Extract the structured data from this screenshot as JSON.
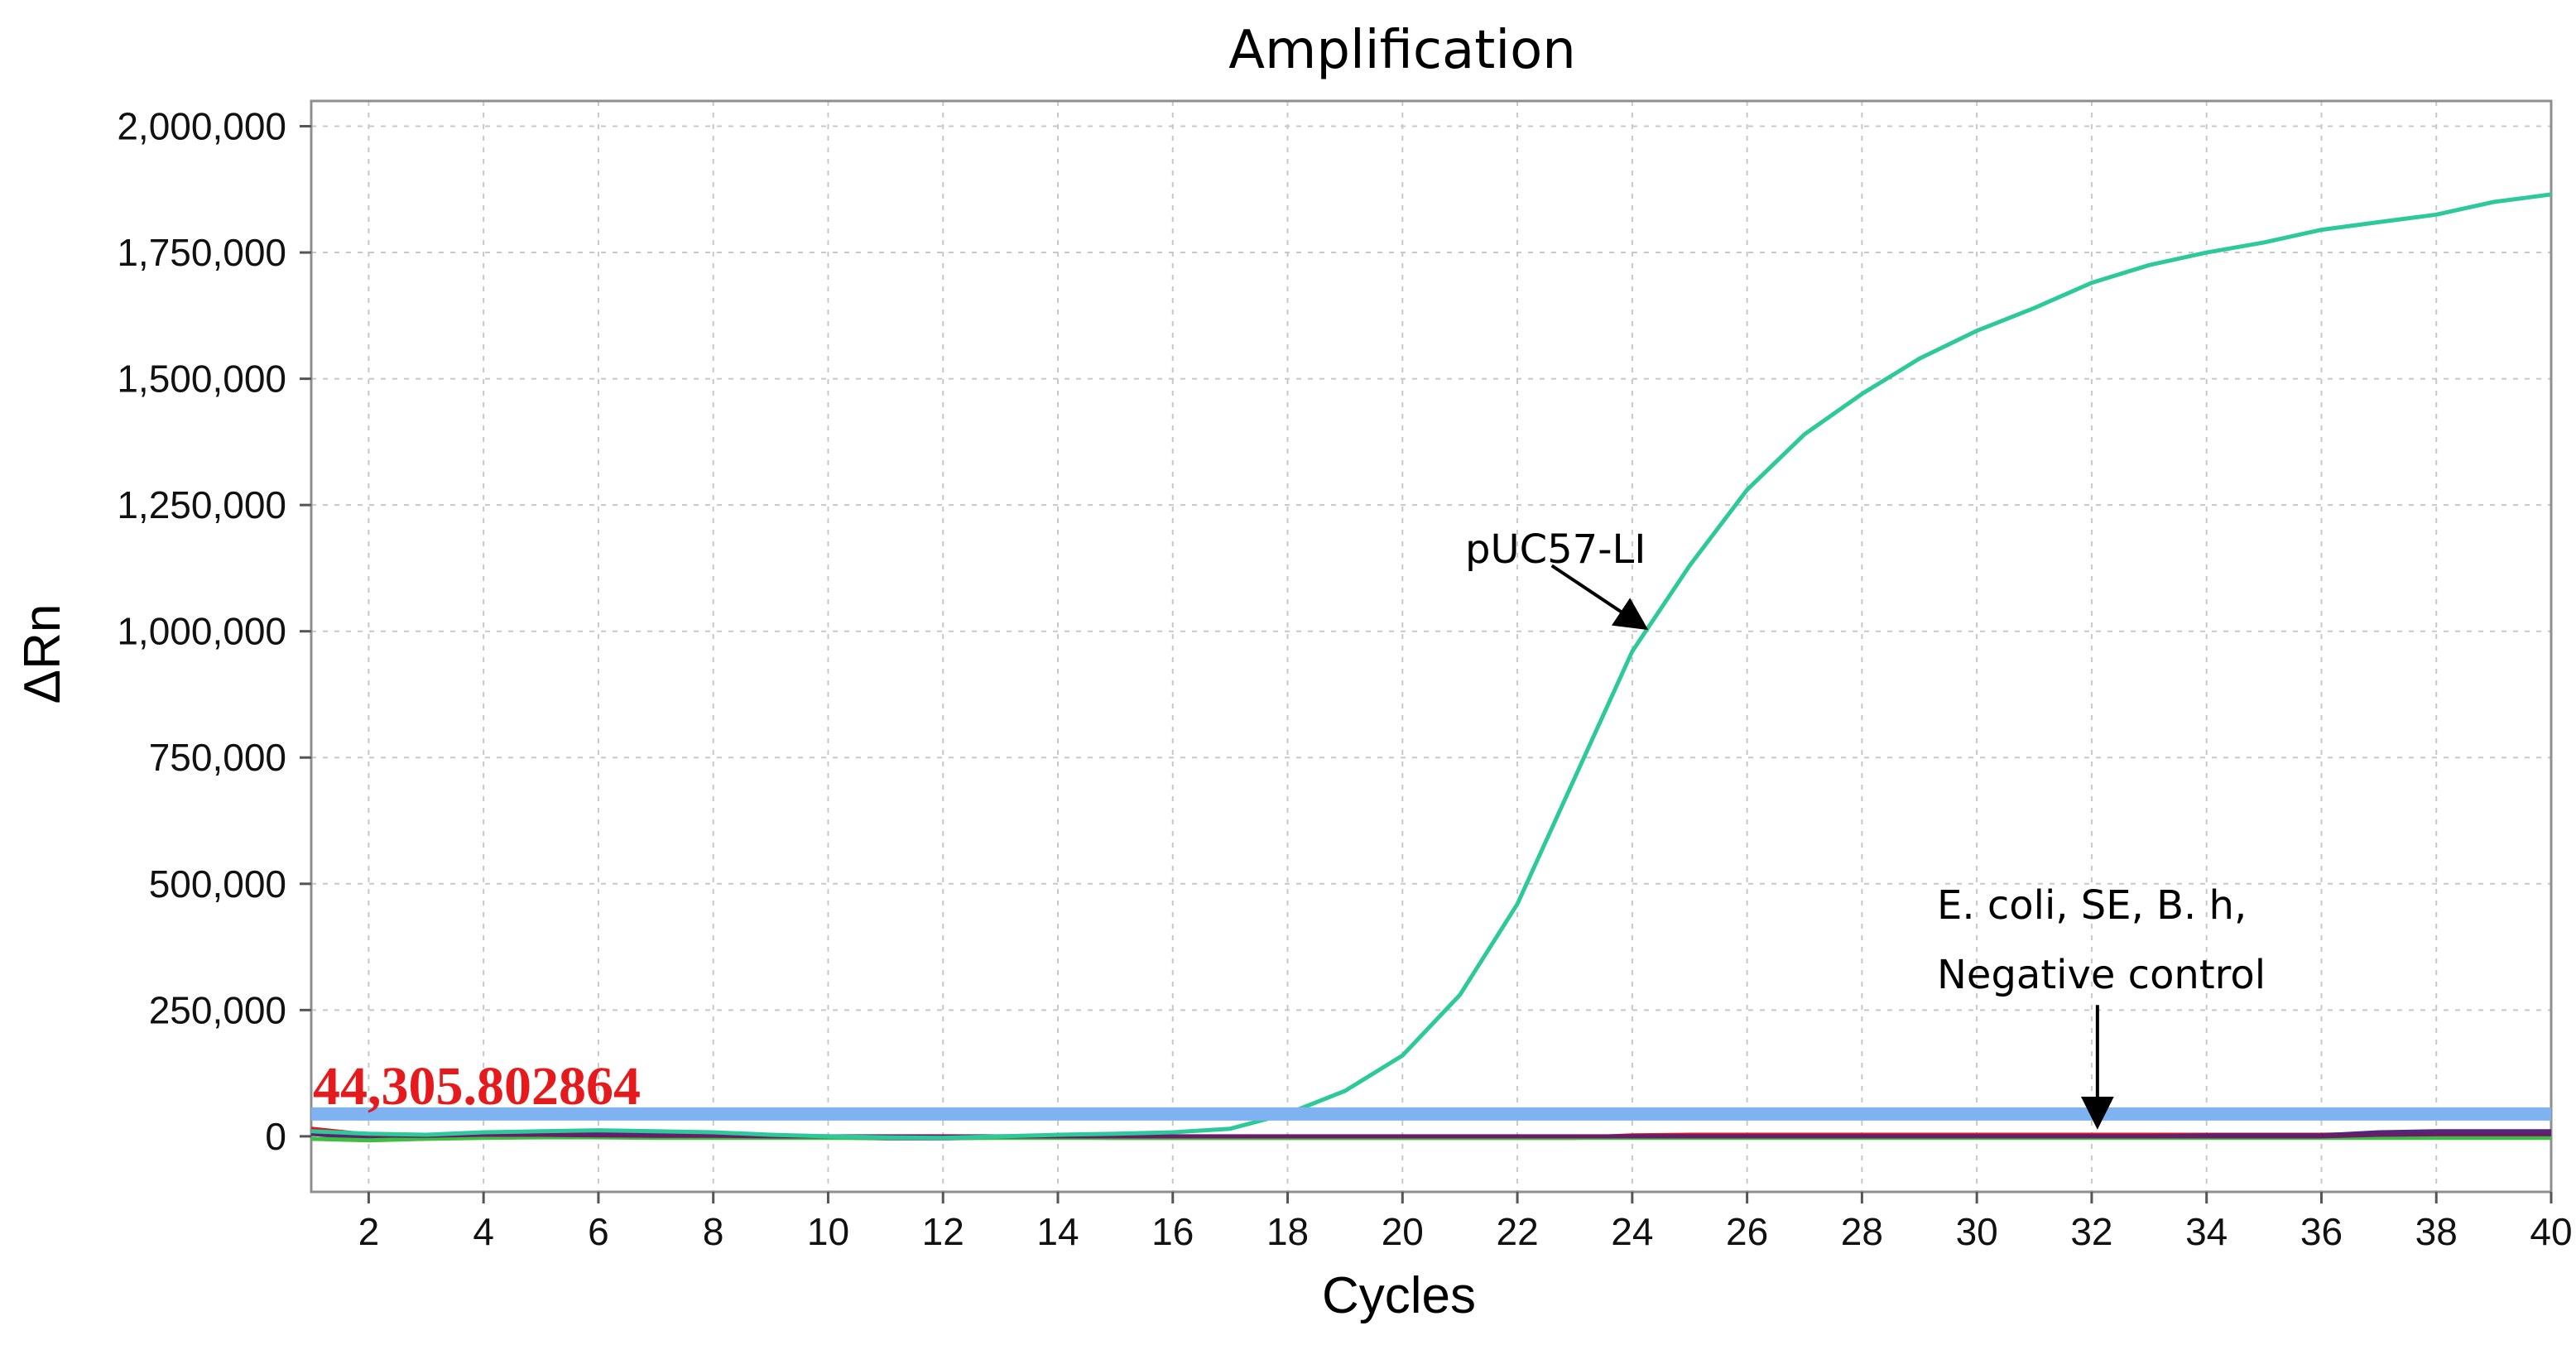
{
  "chart_data": {
    "type": "line",
    "title": "Amplification",
    "xlabel": "Cycles",
    "ylabel": "ΔRn",
    "xlim": [
      1,
      40
    ],
    "ylim": [
      -110000,
      2050000
    ],
    "grid": true,
    "x_ticks": [
      2,
      4,
      6,
      8,
      10,
      12,
      14,
      16,
      18,
      20,
      22,
      24,
      26,
      28,
      30,
      32,
      34,
      36,
      38,
      40
    ],
    "y_ticks": [
      0,
      250000,
      500000,
      750000,
      1000000,
      1250000,
      1500000,
      1750000,
      2000000
    ],
    "y_tick_labels": [
      "0",
      "250,000",
      "500,000",
      "750,000",
      "1,000,000",
      "1,250,000",
      "1,500,000",
      "1,750,000",
      "2,000,000"
    ],
    "threshold": {
      "value": 44305.802864,
      "label": "44,305.802864",
      "color": "#7fb2f0"
    },
    "series": [
      {
        "name": "pUC57-LI",
        "color": "#2ec99a",
        "x": [
          1,
          2,
          3,
          4,
          5,
          6,
          7,
          8,
          9,
          10,
          11,
          12,
          13,
          14,
          15,
          16,
          17,
          18,
          19,
          20,
          21,
          22,
          23,
          24,
          25,
          26,
          27,
          28,
          29,
          30,
          31,
          32,
          33,
          34,
          35,
          36,
          37,
          38,
          39,
          40
        ],
        "values": [
          10000,
          5000,
          3000,
          8000,
          10000,
          12000,
          10000,
          8000,
          3000,
          0,
          -2000,
          -3000,
          0,
          3000,
          5000,
          8000,
          15000,
          45000,
          90000,
          160000,
          280000,
          460000,
          710000,
          960000,
          1130000,
          1280000,
          1390000,
          1470000,
          1540000,
          1595000,
          1640000,
          1690000,
          1725000,
          1750000,
          1770000,
          1795000,
          1810000,
          1825000,
          1850000,
          1865000
        ]
      },
      {
        "name": "E. coli",
        "color": "#d81b22",
        "x": [
          1,
          2,
          3,
          4,
          5,
          6,
          7,
          8,
          9,
          10,
          11,
          12,
          13,
          14,
          15,
          16,
          17,
          18,
          19,
          20,
          21,
          22,
          23,
          24,
          25,
          26,
          27,
          28,
          29,
          30,
          31,
          32,
          33,
          34,
          35,
          36,
          37,
          38,
          39,
          40
        ],
        "values": [
          15000,
          3000,
          0,
          2000,
          3000,
          2000,
          1000,
          0,
          -2000,
          -2000,
          -2000,
          -3000,
          -2000,
          -2000,
          -3000,
          -3000,
          -3000,
          -3000,
          -3000,
          -3000,
          -3000,
          -3000,
          -3000,
          2000,
          3000,
          3000,
          3000,
          3000,
          3000,
          3000,
          3000,
          3000,
          3000,
          3000,
          3000,
          3000,
          5000,
          6000,
          6000,
          6000
        ]
      },
      {
        "name": "SE",
        "color": "#4b2a7b",
        "x": [
          1,
          2,
          3,
          4,
          5,
          6,
          7,
          8,
          9,
          10,
          11,
          12,
          13,
          14,
          15,
          16,
          17,
          18,
          19,
          20,
          21,
          22,
          23,
          24,
          25,
          26,
          27,
          28,
          29,
          30,
          31,
          32,
          33,
          34,
          35,
          36,
          37,
          38,
          39,
          40
        ],
        "values": [
          5000,
          -5000,
          0,
          3000,
          5000,
          4000,
          3000,
          2000,
          0,
          -2000,
          -4000,
          -4000,
          -2000,
          0,
          0,
          -2000,
          -2000,
          -2000,
          -2000,
          -2000,
          -2000,
          -2000,
          -2000,
          0,
          0,
          0,
          0,
          0,
          0,
          0,
          0,
          0,
          0,
          2000,
          2000,
          2000,
          8000,
          10000,
          10000,
          10000
        ]
      },
      {
        "name": "B. h",
        "color": "#3fbf3f",
        "x": [
          1,
          2,
          3,
          4,
          5,
          6,
          7,
          8,
          9,
          10,
          11,
          12,
          13,
          14,
          15,
          16,
          17,
          18,
          19,
          20,
          21,
          22,
          23,
          24,
          25,
          26,
          27,
          28,
          29,
          30,
          31,
          32,
          33,
          34,
          35,
          36,
          37,
          38,
          39,
          40
        ],
        "values": [
          -5000,
          -8000,
          -5000,
          -3000,
          -2000,
          -2000,
          -3000,
          -3000,
          -3000,
          -3000,
          -3000,
          -3000,
          -3000,
          -3000,
          -3000,
          -3000,
          -3000,
          -3000,
          -3000,
          -3000,
          -3000,
          -3000,
          -3000,
          -3000,
          -3000,
          -3000,
          -3000,
          -3000,
          -3000,
          -3000,
          -3000,
          -3000,
          -3000,
          -3000,
          -3000,
          -3000,
          -3000,
          -3000,
          -3000,
          -3000
        ]
      },
      {
        "name": "Negative control",
        "color": "#6a1b6a",
        "x": [
          1,
          2,
          3,
          4,
          5,
          6,
          7,
          8,
          9,
          10,
          11,
          12,
          13,
          14,
          15,
          16,
          17,
          18,
          19,
          20,
          21,
          22,
          23,
          24,
          25,
          26,
          27,
          28,
          29,
          30,
          31,
          32,
          33,
          34,
          35,
          36,
          37,
          38,
          39,
          40
        ],
        "values": [
          8000,
          2000,
          1000,
          3000,
          3000,
          2000,
          1000,
          1000,
          0,
          0,
          0,
          0,
          0,
          0,
          0,
          0,
          0,
          0,
          0,
          0,
          0,
          0,
          0,
          0,
          0,
          0,
          0,
          0,
          0,
          0,
          0,
          0,
          0,
          0,
          0,
          0,
          3000,
          4000,
          4000,
          4000
        ]
      }
    ],
    "annotations": [
      {
        "text": "pUC57-LI",
        "points_to": "pUC57-LI"
      },
      {
        "text": "E. coli, SE, B. h,",
        "text2": "Negative control",
        "points_to": "baseline"
      }
    ]
  }
}
